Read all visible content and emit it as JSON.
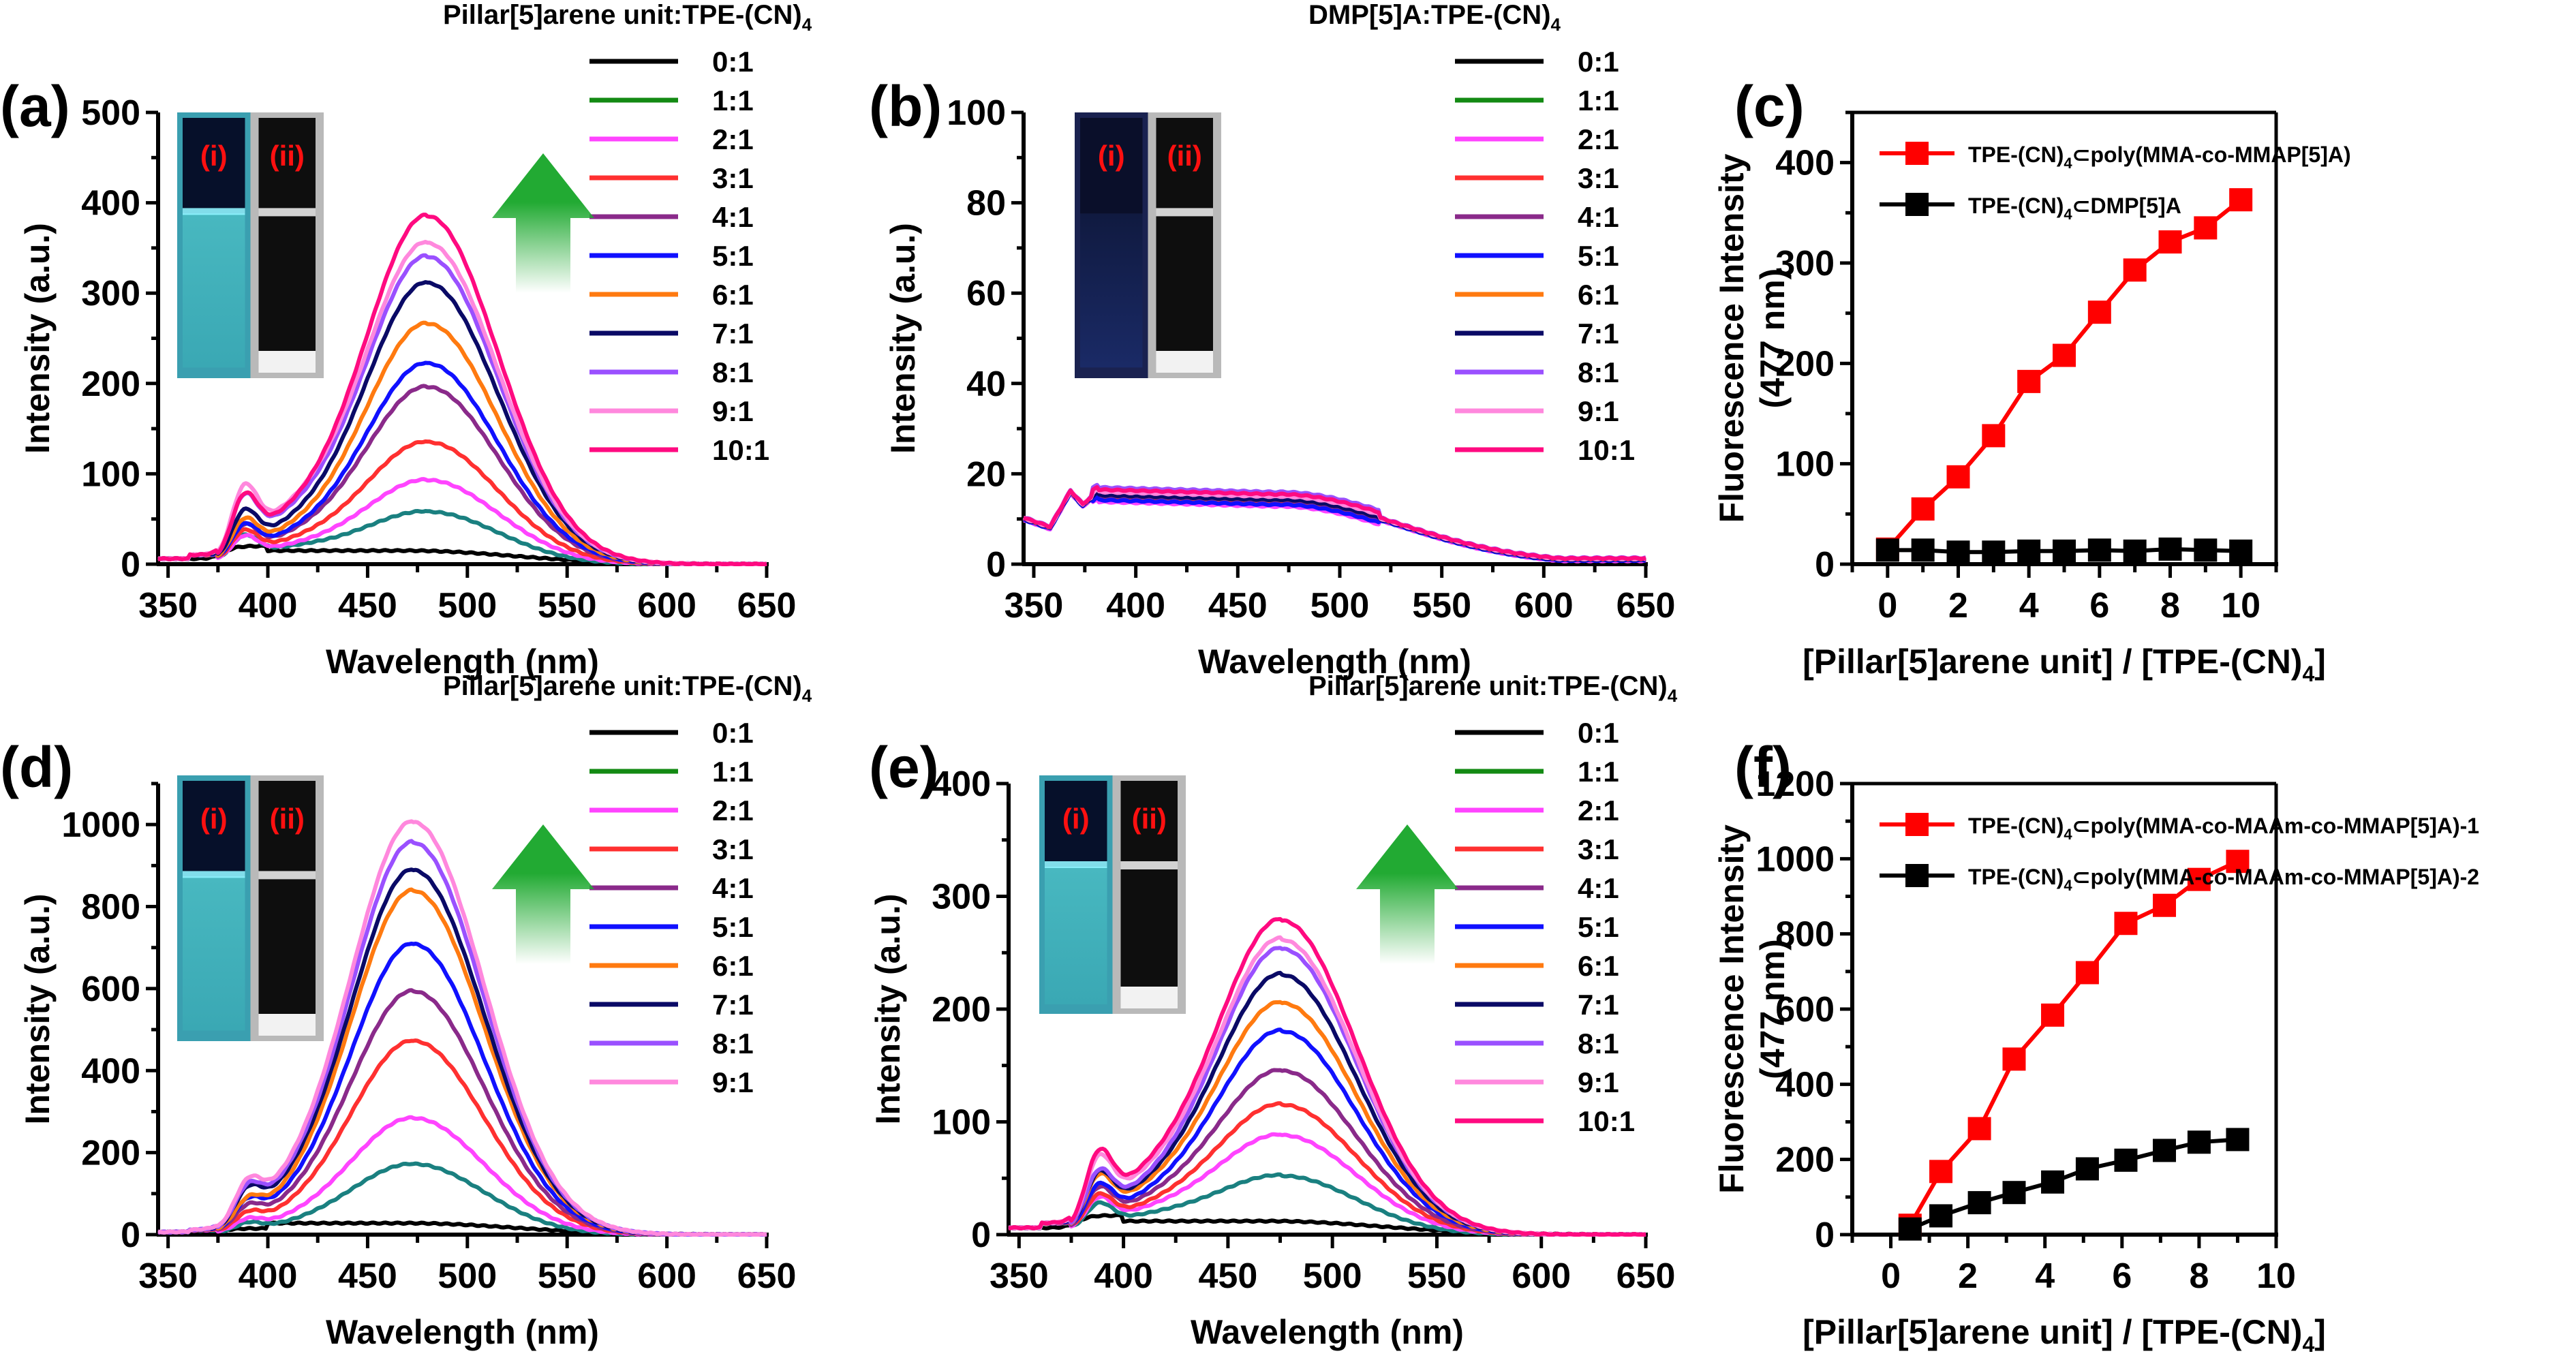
{
  "figure": {
    "panels": [
      "(a)",
      "(b)",
      "(c)",
      "(d)",
      "(e)",
      "(f)"
    ]
  },
  "colors": {
    "ratio_0": "#000000",
    "ratio_1_curve": "#1a8080",
    "ratio_1_legend": "#138a13",
    "ratio_2": "#ff44ff",
    "ratio_3": "#ff3030",
    "ratio_4": "#8a2a8a",
    "ratio_5": "#1010ff",
    "ratio_6": "#ff7a10",
    "ratio_7": "#0a0a66",
    "ratio_8": "#9a50ff",
    "ratio_9": "#ff88dd",
    "ratio_10": "#ff0a80",
    "series_red": "#ff0000",
    "series_black": "#000000",
    "arrow_green": "#22aa33"
  },
  "inset": {
    "label_i": "(i)",
    "label_ii": "(ii)"
  },
  "chart_data": [
    {
      "id": "a",
      "panel_label": "(a)",
      "type": "line",
      "xlabel": "Wavelength (nm)",
      "ylabel": "Intensity (a.u.)",
      "xlim": [
        345,
        650
      ],
      "ylim": [
        0,
        500
      ],
      "xticks": [
        350,
        400,
        450,
        500,
        550,
        600,
        650
      ],
      "yticks": [
        0,
        100,
        200,
        300,
        400,
        500
      ],
      "legend_title": "Pillar[5]arene unit:TPE-(CN)",
      "legend_title_sub": "4",
      "legend_position": "right",
      "has_inset": true,
      "has_arrow": true,
      "shoulder_nm": 388,
      "peak_nm": 480,
      "series": [
        {
          "name": "0:1",
          "peak": 15,
          "shoulder": 20,
          "color_key": "ratio_0",
          "legend_color_key": "ratio_0",
          "flat": true
        },
        {
          "name": "1:1",
          "peak": 58,
          "shoulder": 28,
          "color_key": "ratio_1_curve",
          "legend_color_key": "ratio_1_legend"
        },
        {
          "name": "2:1",
          "peak": 93,
          "shoulder": 27,
          "color_key": "ratio_2",
          "legend_color_key": "ratio_2"
        },
        {
          "name": "3:1",
          "peak": 135,
          "shoulder": 32,
          "color_key": "ratio_3",
          "legend_color_key": "ratio_3"
        },
        {
          "name": "4:1",
          "peak": 196,
          "shoulder": 37,
          "color_key": "ratio_4",
          "legend_color_key": "ratio_4"
        },
        {
          "name": "5:1",
          "peak": 222,
          "shoulder": 37,
          "color_key": "ratio_5",
          "legend_color_key": "ratio_5"
        },
        {
          "name": "6:1",
          "peak": 266,
          "shoulder": 42,
          "color_key": "ratio_6",
          "legend_color_key": "ratio_6"
        },
        {
          "name": "7:1",
          "peak": 311,
          "shoulder": 50,
          "color_key": "ratio_7",
          "legend_color_key": "ratio_7"
        },
        {
          "name": "8:1",
          "peak": 340,
          "shoulder": 65,
          "color_key": "ratio_8",
          "legend_color_key": "ratio_8"
        },
        {
          "name": "9:1",
          "peak": 355,
          "shoulder": 74,
          "color_key": "ratio_9",
          "legend_color_key": "ratio_9"
        },
        {
          "name": "10:1",
          "peak": 385,
          "shoulder": 65,
          "color_key": "ratio_10",
          "legend_color_key": "ratio_10"
        }
      ]
    },
    {
      "id": "b",
      "panel_label": "(b)",
      "type": "line",
      "xlabel": "Wavelength (nm)",
      "ylabel": "Intensity (a.u.)",
      "xlim": [
        345,
        650
      ],
      "ylim": [
        0,
        100
      ],
      "xticks": [
        350,
        400,
        450,
        500,
        550,
        600,
        650
      ],
      "yticks": [
        0,
        20,
        40,
        60,
        80,
        100
      ],
      "legend_title": "DMP[5]A:TPE-(CN)",
      "legend_title_sub": "4",
      "legend_position": "right",
      "has_inset": true,
      "has_arrow": false,
      "flat_profile": {
        "start": 10,
        "dip": 8,
        "peak1": 16,
        "band": 15,
        "end": 1
      },
      "series": [
        {
          "name": "0:1",
          "offset": 0.5,
          "color_key": "ratio_0",
          "legend_color_key": "ratio_0"
        },
        {
          "name": "1:1",
          "offset": 0.2,
          "color_key": "ratio_1_legend",
          "legend_color_key": "ratio_1_legend"
        },
        {
          "name": "2:1",
          "offset": -1.2,
          "color_key": "ratio_2",
          "legend_color_key": "ratio_2"
        },
        {
          "name": "3:1",
          "offset": -0.4,
          "color_key": "ratio_3",
          "legend_color_key": "ratio_3"
        },
        {
          "name": "4:1",
          "offset": 0.0,
          "color_key": "ratio_4",
          "legend_color_key": "ratio_4"
        },
        {
          "name": "5:1",
          "offset": -0.8,
          "color_key": "ratio_5",
          "legend_color_key": "ratio_5"
        },
        {
          "name": "6:1",
          "offset": 0.9,
          "color_key": "ratio_6",
          "legend_color_key": "ratio_6"
        },
        {
          "name": "7:1",
          "offset": 0.3,
          "color_key": "ratio_7",
          "legend_color_key": "ratio_7"
        },
        {
          "name": "8:1",
          "offset": 2.0,
          "color_key": "ratio_8",
          "legend_color_key": "ratio_8"
        },
        {
          "name": "9:1",
          "offset": 1.0,
          "color_key": "ratio_9",
          "legend_color_key": "ratio_9"
        },
        {
          "name": "10:1",
          "offset": 1.5,
          "color_key": "ratio_10",
          "legend_color_key": "ratio_10"
        }
      ]
    },
    {
      "id": "c",
      "panel_label": "(c)",
      "type": "line",
      "markers": "square",
      "xlabel": "[Pillar[5]arene unit] / [TPE-(CN)",
      "xlabel_sub": "4",
      "xlabel_end": "]",
      "ylabel": "Fluorescence Intensity",
      "ylabel2": "(477 nm)",
      "xlim": [
        -1,
        11
      ],
      "ylim": [
        0,
        450
      ],
      "xticks": [
        0,
        2,
        4,
        6,
        8,
        10
      ],
      "yticks": [
        0,
        100,
        200,
        300,
        400
      ],
      "legend_position": "top-left",
      "series": [
        {
          "name_pre": "TPE-(CN)",
          "name_sub": "4",
          "name_post": "⊂poly(MMA-co-MMAP[5]A)",
          "color_key": "series_red",
          "x": [
            0,
            1,
            2,
            3,
            4,
            5,
            6,
            7,
            8,
            9,
            10
          ],
          "y": [
            15,
            55,
            87,
            128,
            182,
            208,
            251,
            293,
            321,
            335,
            363
          ]
        },
        {
          "name_pre": "TPE-(CN)",
          "name_sub": "4",
          "name_post": "⊂DMP[5]A",
          "color_key": "series_black",
          "x": [
            0,
            1,
            2,
            3,
            4,
            5,
            6,
            7,
            8,
            9,
            10
          ],
          "y": [
            14,
            14,
            12,
            12,
            13,
            13,
            14,
            13,
            15,
            14,
            13
          ]
        }
      ]
    },
    {
      "id": "d",
      "panel_label": "(d)",
      "type": "line",
      "xlabel": "Wavelength (nm)",
      "ylabel": "Intensity (a.u.)",
      "xlim": [
        345,
        650
      ],
      "ylim": [
        0,
        1100
      ],
      "xticks": [
        350,
        400,
        450,
        500,
        550,
        600,
        650
      ],
      "yticks": [
        0,
        200,
        400,
        600,
        800,
        1000
      ],
      "legend_title": "Pillar[5]arene unit:TPE-(CN)",
      "legend_title_sub": "4",
      "legend_position": "right",
      "has_inset": true,
      "has_arrow": true,
      "shoulder_nm": 390,
      "peak_nm": 473,
      "series": [
        {
          "name": "0:1",
          "peak": 28,
          "shoulder": 15,
          "color_key": "ratio_0",
          "legend_color_key": "ratio_0",
          "flat": true
        },
        {
          "name": "1:1",
          "peak": 172,
          "shoulder": 22,
          "color_key": "ratio_1_curve",
          "legend_color_key": "ratio_1_legend"
        },
        {
          "name": "2:1",
          "peak": 284,
          "shoulder": 28,
          "color_key": "ratio_2",
          "legend_color_key": "ratio_2"
        },
        {
          "name": "3:1",
          "peak": 472,
          "shoulder": 38,
          "color_key": "ratio_3",
          "legend_color_key": "ratio_3"
        },
        {
          "name": "4:1",
          "peak": 593,
          "shoulder": 50,
          "color_key": "ratio_4",
          "legend_color_key": "ratio_4"
        },
        {
          "name": "5:1",
          "peak": 708,
          "shoulder": 60,
          "color_key": "ratio_5",
          "legend_color_key": "ratio_5"
        },
        {
          "name": "6:1",
          "peak": 838,
          "shoulder": 60,
          "color_key": "ratio_6",
          "legend_color_key": "ratio_6"
        },
        {
          "name": "7:1",
          "peak": 888,
          "shoulder": 80,
          "color_key": "ratio_7",
          "legend_color_key": "ratio_7"
        },
        {
          "name": "8:1",
          "peak": 955,
          "shoulder": 85,
          "color_key": "ratio_8",
          "legend_color_key": "ratio_8"
        },
        {
          "name": "9:1",
          "peak": 1005,
          "shoulder": 95,
          "color_key": "ratio_9",
          "legend_color_key": "ratio_9"
        }
      ]
    },
    {
      "id": "e",
      "panel_label": "(e)",
      "type": "line",
      "xlabel": "Wavelength (nm)",
      "ylabel": "Intensity (a.u.)",
      "xlim": [
        345,
        650
      ],
      "ylim": [
        0,
        400
      ],
      "xticks": [
        350,
        400,
        450,
        500,
        550,
        600,
        650
      ],
      "yticks": [
        0,
        100,
        200,
        300,
        400
      ],
      "legend_title": "Pillar[5]arene unit:TPE-(CN)",
      "legend_title_sub": "4",
      "legend_position": "right",
      "has_inset": true,
      "has_arrow": true,
      "shoulder_nm": 388,
      "peak_nm": 476,
      "series": [
        {
          "name": "0:1",
          "peak": 12,
          "shoulder": 17,
          "color_key": "ratio_0",
          "legend_color_key": "ratio_0",
          "flat": true
        },
        {
          "name": "1:1",
          "peak": 52,
          "shoulder": 24,
          "color_key": "ratio_1_curve",
          "legend_color_key": "ratio_1_legend"
        },
        {
          "name": "2:1",
          "peak": 88,
          "shoulder": 28,
          "color_key": "ratio_2",
          "legend_color_key": "ratio_2"
        },
        {
          "name": "3:1",
          "peak": 115,
          "shoulder": 30,
          "color_key": "ratio_3",
          "legend_color_key": "ratio_3"
        },
        {
          "name": "4:1",
          "peak": 145,
          "shoulder": 35,
          "color_key": "ratio_4",
          "legend_color_key": "ratio_4"
        },
        {
          "name": "5:1",
          "peak": 180,
          "shoulder": 37,
          "color_key": "ratio_5",
          "legend_color_key": "ratio_5"
        },
        {
          "name": "6:1",
          "peak": 205,
          "shoulder": 44,
          "color_key": "ratio_6",
          "legend_color_key": "ratio_6"
        },
        {
          "name": "7:1",
          "peak": 230,
          "shoulder": 46,
          "color_key": "ratio_7",
          "legend_color_key": "ratio_7"
        },
        {
          "name": "8:1",
          "peak": 253,
          "shoulder": 47,
          "color_key": "ratio_8",
          "legend_color_key": "ratio_8"
        },
        {
          "name": "9:1",
          "peak": 261,
          "shoulder": 58,
          "color_key": "ratio_9",
          "legend_color_key": "ratio_9"
        },
        {
          "name": "10:1",
          "peak": 278,
          "shoulder": 62,
          "color_key": "ratio_10",
          "legend_color_key": "ratio_10"
        }
      ]
    },
    {
      "id": "f",
      "panel_label": "(f)",
      "type": "line",
      "markers": "square",
      "xlabel": "[Pillar[5]arene unit] / [TPE-(CN)",
      "xlabel_sub": "4",
      "xlabel_end": "]",
      "ylabel": "Fluorescence Intensity",
      "ylabel2": "(477 nm)",
      "xlim": [
        -1,
        10
      ],
      "ylim": [
        0,
        1200
      ],
      "xticks": [
        0,
        2,
        4,
        6,
        8,
        10
      ],
      "yticks": [
        0,
        200,
        400,
        600,
        800,
        1000,
        1200
      ],
      "legend_position": "top-left",
      "series": [
        {
          "name_pre": "TPE-(CN)",
          "name_sub": "4",
          "name_post": "⊂poly(MMA-co-MAAm-co-MMAP[5]A)-1",
          "color_key": "series_red",
          "x": [
            0.5,
            1.3,
            2.3,
            3.2,
            4.2,
            5.1,
            6.1,
            7.1,
            8.0,
            9.0
          ],
          "y": [
            25,
            168,
            282,
            467,
            584,
            697,
            828,
            876,
            945,
            993
          ]
        },
        {
          "name_pre": "TPE-(CN)",
          "name_sub": "4",
          "name_post": "⊂poly(MMA-co-MAAm-co-MMAP[5]A)-2",
          "color_key": "series_black",
          "x": [
            0.5,
            1.3,
            2.3,
            3.2,
            4.2,
            5.1,
            6.1,
            7.1,
            8.0,
            9.0
          ],
          "y": [
            15,
            50,
            85,
            112,
            140,
            175,
            198,
            224,
            246,
            253
          ]
        }
      ]
    }
  ]
}
